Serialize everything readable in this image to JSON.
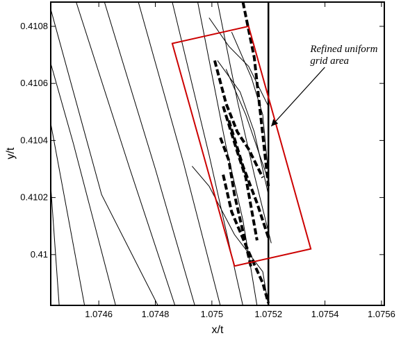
{
  "chart_data": {
    "type": "contour",
    "title": "",
    "xlabel": "x/t",
    "ylabel": "y/t",
    "xlim": [
      1.07443,
      1.07561
    ],
    "ylim": [
      0.409822,
      0.410885
    ],
    "x_ticks": [
      {
        "value": 1.0746,
        "label": "1.0746"
      },
      {
        "value": 1.0748,
        "label": "1.0748"
      },
      {
        "value": 1.075,
        "label": "1.075"
      },
      {
        "value": 1.0752,
        "label": "1.0752"
      },
      {
        "value": 1.0754,
        "label": "1.0754"
      },
      {
        "value": 1.0756,
        "label": "1.0756"
      }
    ],
    "y_ticks": [
      {
        "value": 0.41,
        "label": "0.41"
      },
      {
        "value": 0.4102,
        "label": "0.4102"
      },
      {
        "value": 0.4104,
        "label": "0.4104"
      },
      {
        "value": 0.4106,
        "label": "0.4106"
      },
      {
        "value": 0.4108,
        "label": "0.4108"
      }
    ],
    "grid": false,
    "vertical_line": {
      "x": 1.0752
    },
    "refined_region": {
      "color": "#cc0000",
      "corners": [
        [
          1.07486,
          0.41074
        ],
        [
          1.07513,
          0.4108
        ],
        [
          1.07535,
          0.41002
        ],
        [
          1.07508,
          0.40996
        ]
      ]
    },
    "annotation": {
      "lines": [
        "Refined uniform",
        "grid area"
      ],
      "anchor": [
        1.07537,
        0.41071
      ],
      "arrow_to": [
        1.07521,
        0.41045
      ]
    },
    "contours_thin": [
      [
        [
          1.07443,
          0.41086
        ],
        [
          1.07461,
          0.41021
        ],
        [
          1.07481,
          0.40982
        ]
      ],
      [
        [
          1.07443,
          0.41067
        ],
        [
          1.07451,
          0.41039
        ],
        [
          1.07466,
          0.40982
        ]
      ],
      [
        [
          1.07443,
          0.41046
        ],
        [
          1.07455,
          0.40982
        ]
      ],
      [
        [
          1.07443,
          0.41024
        ],
        [
          1.07446,
          0.40982
        ]
      ],
      [
        [
          1.07452,
          0.410885
        ],
        [
          1.07471,
          0.4103
        ],
        [
          1.07487,
          0.40982
        ]
      ],
      [
        [
          1.07462,
          0.410885
        ],
        [
          1.0748,
          0.4103
        ],
        [
          1.07494,
          0.40982
        ]
      ],
      [
        [
          1.07474,
          0.410885
        ],
        [
          1.0749,
          0.41032
        ],
        [
          1.07503,
          0.40982
        ]
      ],
      [
        [
          1.07486,
          0.410885
        ],
        [
          1.07499,
          0.41035
        ],
        [
          1.07511,
          0.40982
        ]
      ],
      [
        [
          1.07495,
          0.410885
        ],
        [
          1.07505,
          0.41038
        ],
        [
          1.07511,
          0.41012
        ],
        [
          1.07516,
          0.40982
        ]
      ],
      [
        [
          1.07502,
          0.410885
        ],
        [
          1.07509,
          0.41054
        ],
        [
          1.07515,
          0.41028
        ],
        [
          1.07521,
          0.41004
        ]
      ],
      [
        [
          1.07505,
          0.41065
        ],
        [
          1.07512,
          0.41049
        ],
        [
          1.0752,
          0.41026
        ]
      ],
      [
        [
          1.07507,
          0.41078
        ],
        [
          1.07514,
          0.41062
        ],
        [
          1.07518,
          0.41049
        ],
        [
          1.0752,
          0.41028
        ]
      ],
      [
        [
          1.07499,
          0.41083
        ],
        [
          1.07506,
          0.41073
        ],
        [
          1.07513,
          0.41066
        ],
        [
          1.0752,
          0.41052
        ],
        [
          1.0752,
          0.41026
        ]
      ],
      [
        [
          1.07502,
          0.41068
        ],
        [
          1.0751,
          0.41057
        ],
        [
          1.07515,
          0.41043
        ],
        [
          1.0752,
          0.41021
        ],
        [
          1.0752,
          0.40992
        ]
      ],
      [
        [
          1.07493,
          0.41031
        ],
        [
          1.07499,
          0.41024
        ],
        [
          1.07508,
          0.41007
        ],
        [
          1.07518,
          0.40994
        ],
        [
          1.0752,
          0.40982
        ]
      ]
    ],
    "contours_dashed": [
      [
        [
          1.07511,
          0.410885
        ],
        [
          1.07515,
          0.41069
        ],
        [
          1.0752,
          0.41024
        ]
      ],
      [
        [
          1.07501,
          0.41068
        ],
        [
          1.07505,
          0.41053
        ],
        [
          1.07509,
          0.41043
        ],
        [
          1.07513,
          0.41037
        ],
        [
          1.07518,
          0.41027
        ]
      ],
      [
        [
          1.07504,
          0.41052
        ],
        [
          1.07509,
          0.41036
        ],
        [
          1.07512,
          0.41027
        ],
        [
          1.07514,
          0.41016
        ],
        [
          1.07516,
          0.41005
        ]
      ],
      [
        [
          1.07503,
          0.41041
        ],
        [
          1.07506,
          0.41033
        ],
        [
          1.07508,
          0.41021
        ],
        [
          1.07511,
          0.41008
        ],
        [
          1.07514,
          0.40995
        ]
      ],
      [
        [
          1.07504,
          0.41028
        ],
        [
          1.07507,
          0.41015
        ],
        [
          1.07513,
          0.41001
        ],
        [
          1.07518,
          0.4099
        ],
        [
          1.0752,
          0.40983
        ]
      ],
      [
        [
          1.07506,
          0.41047
        ],
        [
          1.07511,
          0.41031
        ],
        [
          1.07516,
          0.41018
        ],
        [
          1.0752,
          0.41006
        ]
      ]
    ]
  }
}
